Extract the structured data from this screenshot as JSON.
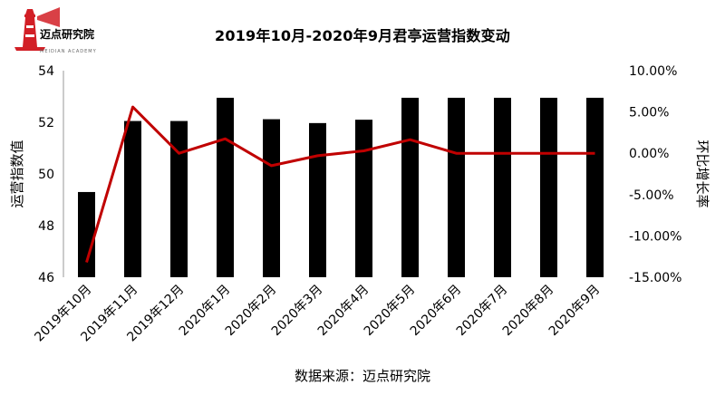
{
  "header": {
    "logo_text": "迈点研究院",
    "logo_subtext": "MEIDIAN ACADEMY"
  },
  "chart_data": {
    "type": "bar",
    "title": "2019年10月-2020年9月君亭运营指数变动",
    "categories": [
      "2019年10月",
      "2019年11月",
      "2019年12月",
      "2020年1月",
      "2020年2月",
      "2020年3月",
      "2020年4月",
      "2020年5月",
      "2020年6月",
      "2020年7月",
      "2020年8月",
      "2020年9月"
    ],
    "series": [
      {
        "type": "bar",
        "axis": "left",
        "color": "#000000",
        "values": [
          49.3,
          52.05,
          52.05,
          52.95,
          52.12,
          51.97,
          52.1,
          52.95,
          52.95,
          52.95,
          52.95,
          52.95
        ]
      },
      {
        "type": "line",
        "axis": "right",
        "color": "#c00000",
        "values": [
          -13.2,
          5.6,
          0.0,
          1.75,
          -1.5,
          -0.3,
          0.3,
          1.65,
          0.0,
          0.0,
          0.0,
          0.0
        ]
      }
    ],
    "ylabel": "运营指数值",
    "y2label": "环比增长率",
    "ylim": [
      46,
      54
    ],
    "yticks": [
      "46",
      "48",
      "50",
      "52",
      "54"
    ],
    "y2lim": [
      -15,
      10
    ],
    "y2ticks": [
      "-15.00%",
      "-10.00%",
      "-5.00%",
      "0.00%",
      "5.00%",
      "10.00%"
    ],
    "source": "数据来源：迈点研究院"
  }
}
